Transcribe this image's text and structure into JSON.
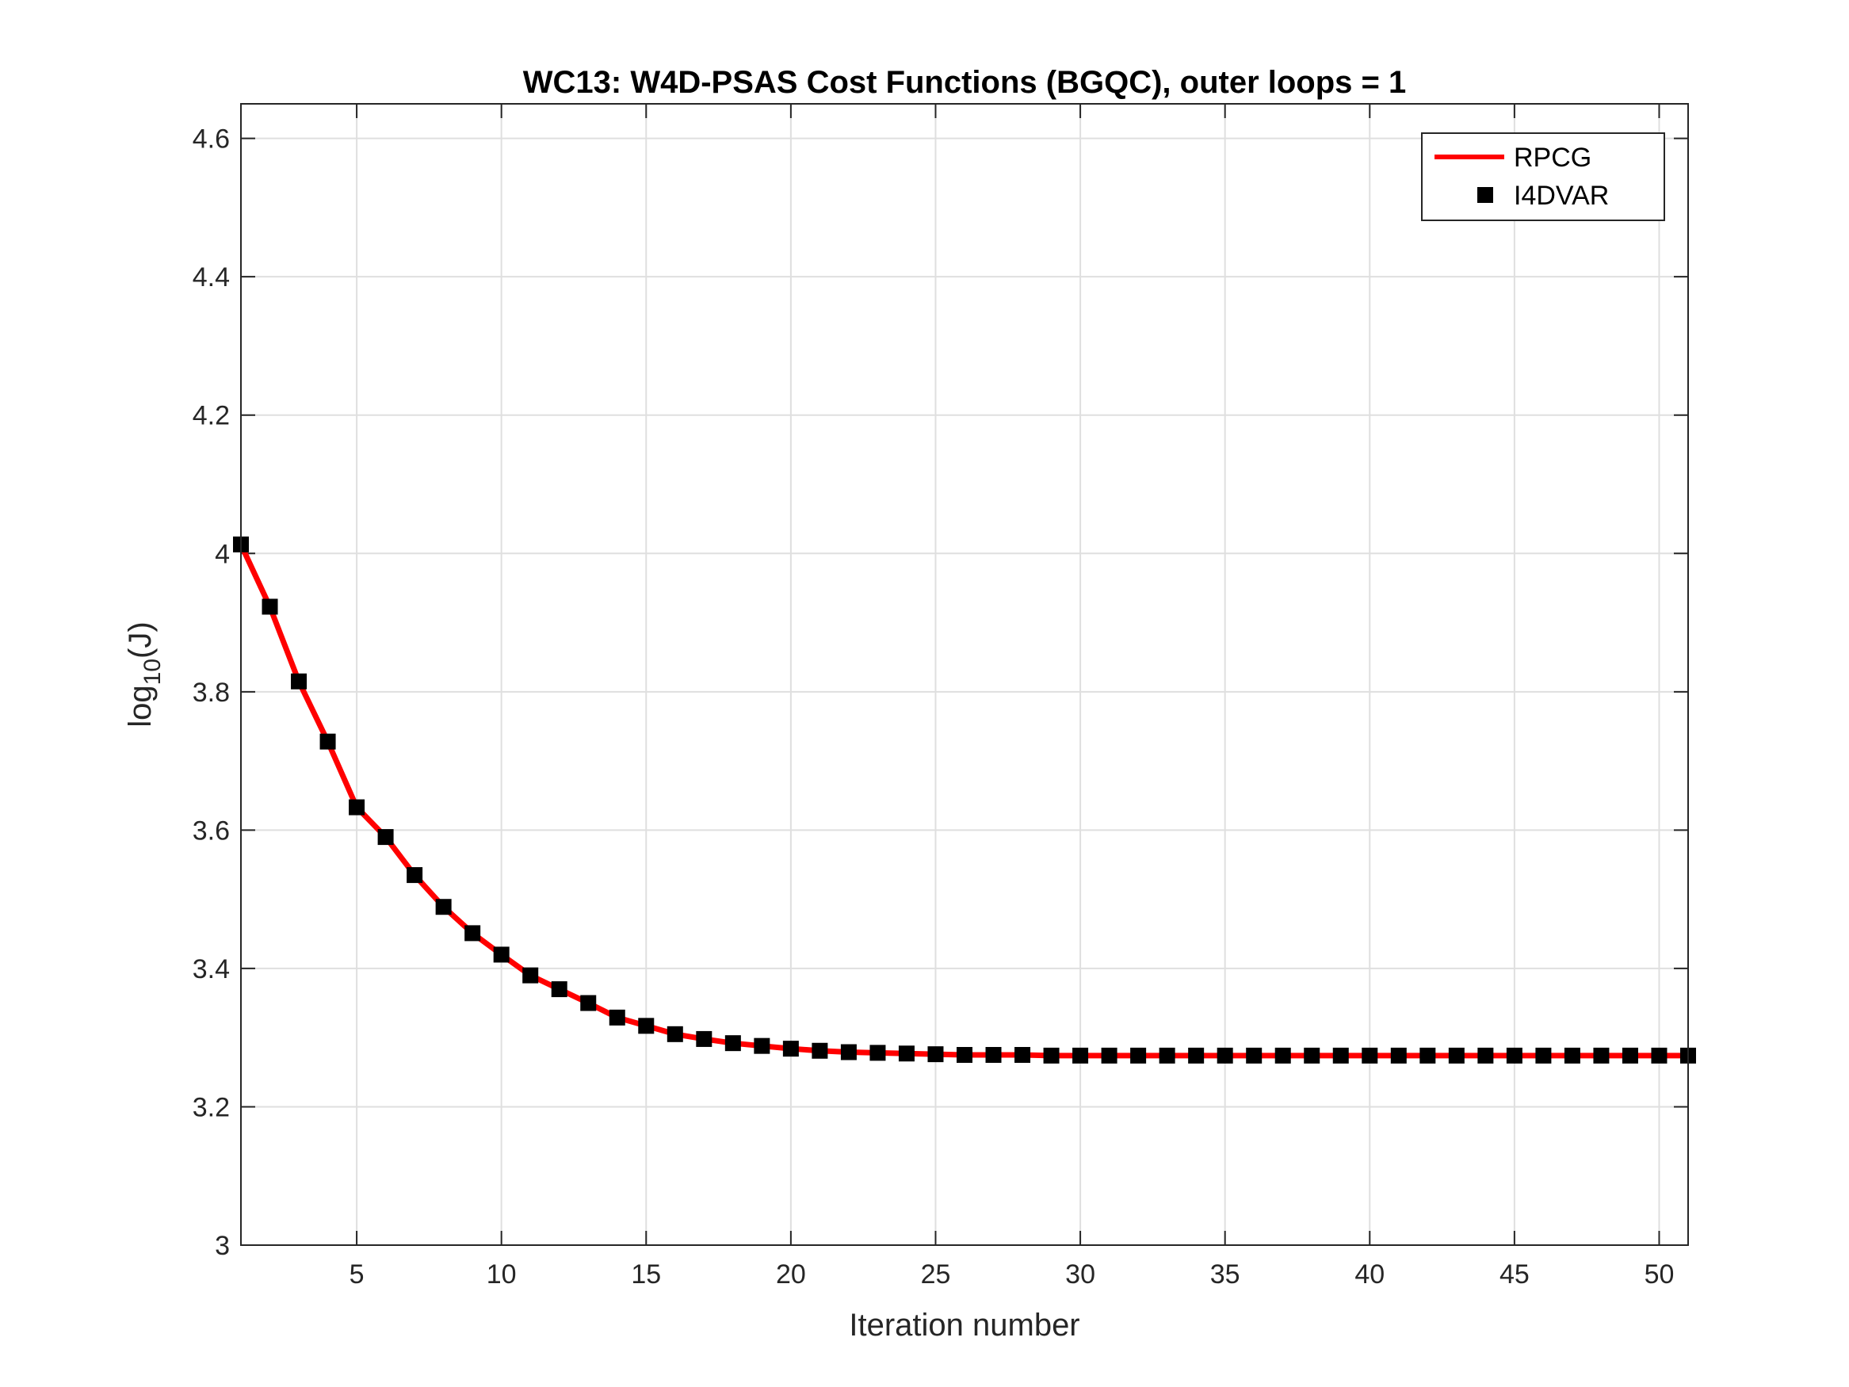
{
  "chart_data": {
    "type": "line",
    "title": "WC13: W4D-PSAS Cost Functions (BGQC), outer loops = 1",
    "xlabel": "Iteration number",
    "ylabel": {
      "prefix": "log",
      "subscript": "10",
      "suffix": "(J)"
    },
    "xlim": [
      1,
      51
    ],
    "ylim": [
      3,
      4.65
    ],
    "xticks": [
      5,
      10,
      15,
      20,
      25,
      30,
      35,
      40,
      45,
      50
    ],
    "xtick_labels": [
      "5",
      "10",
      "15",
      "20",
      "25",
      "30",
      "35",
      "40",
      "45",
      "50"
    ],
    "yticks": [
      3,
      3.2,
      3.4,
      3.6,
      3.8,
      4,
      4.2,
      4.4,
      4.6
    ],
    "ytick_labels": [
      "3",
      "3.2",
      "3.4",
      "3.6",
      "3.8",
      "4",
      "4.2",
      "4.4",
      "4.6"
    ],
    "grid": true,
    "legend_position": "top-right",
    "x": [
      1,
      2,
      3,
      4,
      5,
      6,
      7,
      8,
      9,
      10,
      11,
      12,
      13,
      14,
      15,
      16,
      17,
      18,
      19,
      20,
      21,
      22,
      23,
      24,
      25,
      26,
      27,
      28,
      29,
      30,
      31,
      32,
      33,
      34,
      35,
      36,
      37,
      38,
      39,
      40,
      41,
      42,
      43,
      44,
      45,
      46,
      47,
      48,
      49,
      50,
      51
    ],
    "series": [
      {
        "name": "RPCG",
        "style": "line",
        "color": "#ff0000",
        "values": [
          4.013,
          3.923,
          3.815,
          3.728,
          3.633,
          3.59,
          3.535,
          3.489,
          3.451,
          3.42,
          3.39,
          3.37,
          3.35,
          3.329,
          3.317,
          3.305,
          3.298,
          3.292,
          3.288,
          3.284,
          3.281,
          3.279,
          3.278,
          3.277,
          3.276,
          3.275,
          3.275,
          3.275,
          3.274,
          3.274,
          3.274,
          3.274,
          3.274,
          3.274,
          3.274,
          3.274,
          3.274,
          3.274,
          3.274,
          3.274,
          3.274,
          3.274,
          3.274,
          3.274,
          3.274,
          3.274,
          3.274,
          3.274,
          3.274,
          3.274,
          3.274
        ]
      },
      {
        "name": "I4DVAR",
        "style": "square-markers",
        "color": "#000000",
        "values": [
          4.013,
          3.923,
          3.815,
          3.728,
          3.633,
          3.59,
          3.535,
          3.489,
          3.451,
          3.42,
          3.39,
          3.37,
          3.35,
          3.329,
          3.317,
          3.305,
          3.298,
          3.292,
          3.288,
          3.284,
          3.281,
          3.279,
          3.278,
          3.277,
          3.276,
          3.275,
          3.275,
          3.275,
          3.274,
          3.274,
          3.274,
          3.274,
          3.274,
          3.274,
          3.274,
          3.274,
          3.274,
          3.274,
          3.274,
          3.274,
          3.274,
          3.274,
          3.274,
          3.274,
          3.274,
          3.274,
          3.274,
          3.274,
          3.274,
          3.274,
          3.274
        ]
      }
    ]
  }
}
